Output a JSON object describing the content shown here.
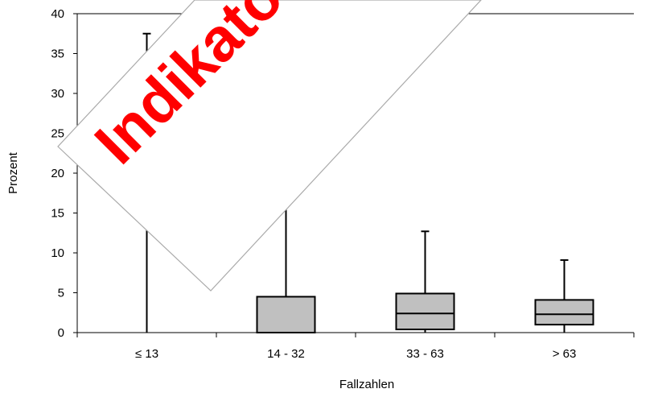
{
  "chart_data": {
    "type": "boxplot",
    "xlabel": "Fallzahlen",
    "ylabel": "Prozent",
    "ylim": [
      0,
      40
    ],
    "yticks": [
      0,
      5,
      10,
      15,
      20,
      25,
      30,
      35,
      40
    ],
    "categories": [
      "≤ 13",
      "14 - 32",
      "33 - 63",
      "> 63"
    ],
    "boxes": [
      {
        "category": "≤ 13",
        "min": 0,
        "q1": 0,
        "median": 0,
        "q3": 0,
        "max": 37.5
      },
      {
        "category": "14 - 32",
        "min": 0,
        "q1": 0,
        "median": 0,
        "q3": 4.5,
        "max": 17.5
      },
      {
        "category": "33 - 63",
        "min": 0,
        "q1": 0.4,
        "median": 2.4,
        "q3": 4.9,
        "max": 12.7
      },
      {
        "category": "> 63",
        "min": 0,
        "q1": 1.0,
        "median": 2.3,
        "q3": 4.1,
        "max": 9.1
      }
    ],
    "box_color": "#c0c0c0",
    "grid": false
  },
  "watermark": {
    "text": "Indikator",
    "text_color": "#ff0000"
  }
}
